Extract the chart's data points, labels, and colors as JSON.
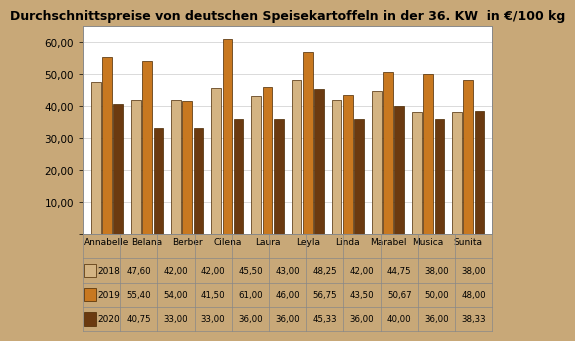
{
  "title": "Durchschnittspreise von deutschen Speisekartoffeln in der 36. KW  in €/100 kg",
  "categories": [
    "Annabelle",
    "Belana",
    "Berber",
    "Cilena",
    "Laura",
    "Leyla",
    "Linda",
    "Marabel",
    "Musica",
    "Sunita"
  ],
  "series": {
    "2018": [
      47.6,
      42.0,
      42.0,
      45.5,
      43.0,
      48.25,
      42.0,
      44.75,
      38.0,
      38.0
    ],
    "2019": [
      55.4,
      54.0,
      41.5,
      61.0,
      46.0,
      56.75,
      43.5,
      50.67,
      50.0,
      48.0
    ],
    "2020": [
      40.75,
      33.0,
      33.0,
      36.0,
      36.0,
      45.33,
      36.0,
      40.0,
      36.0,
      38.33
    ]
  },
  "colors": {
    "2018": "#D4B483",
    "2019": "#C87820",
    "2020": "#6B3A10"
  },
  "ylim": [
    0,
    65
  ],
  "yticks": [
    0,
    10,
    20,
    30,
    40,
    50,
    60
  ],
  "ytick_labels": [
    "",
    "10,00",
    "20,00",
    "30,00",
    "40,00",
    "50,00",
    "60,00"
  ],
  "background_color": "#C8A878",
  "plot_bg_color": "#FFFFFF",
  "title_fontsize": 9.0,
  "table_values": {
    "2018": [
      "47,60",
      "42,00",
      "42,00",
      "45,50",
      "43,00",
      "48,25",
      "42,00",
      "44,75",
      "38,00",
      "38,00"
    ],
    "2019": [
      "55,40",
      "54,00",
      "41,50",
      "61,00",
      "46,00",
      "56,75",
      "43,50",
      "50,67",
      "50,00",
      "48,00"
    ],
    "2020": [
      "40,75",
      "33,00",
      "33,00",
      "36,00",
      "36,00",
      "45,33",
      "36,00",
      "40,00",
      "36,00",
      "38,33"
    ]
  }
}
